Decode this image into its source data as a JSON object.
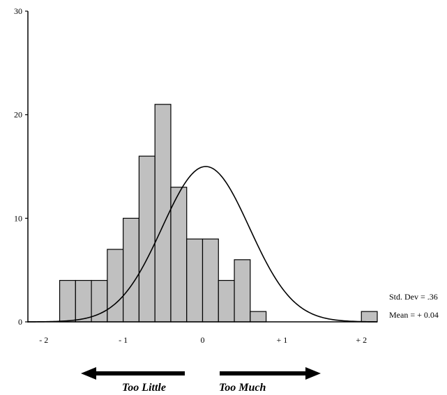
{
  "chart_data": {
    "type": "bar",
    "title": "",
    "xlabel": "",
    "ylabel": "",
    "ylim": [
      0,
      30
    ],
    "xlim": [
      -2.2,
      2.2
    ],
    "grid": false,
    "y_ticks": [
      "0",
      "10",
      "20",
      "30"
    ],
    "y_tick_values": [
      0,
      10,
      20,
      30
    ],
    "x_ticks": [
      "- 2",
      "- 1",
      "0",
      "+ 1",
      "+ 2"
    ],
    "x_tick_values": [
      -2,
      -1,
      0,
      1,
      2
    ],
    "bins": [
      {
        "start": -1.8,
        "end": -1.6,
        "value": 4
      },
      {
        "start": -1.6,
        "end": -1.4,
        "value": 4
      },
      {
        "start": -1.4,
        "end": -1.2,
        "value": 4
      },
      {
        "start": -1.2,
        "end": -1.0,
        "value": 7
      },
      {
        "start": -1.0,
        "end": -0.8,
        "value": 10
      },
      {
        "start": -0.8,
        "end": -0.6,
        "value": 16
      },
      {
        "start": -0.6,
        "end": -0.4,
        "value": 21
      },
      {
        "start": -0.4,
        "end": -0.2,
        "value": 13
      },
      {
        "start": -0.2,
        "end": 0.0,
        "value": 8
      },
      {
        "start": 0.0,
        "end": 0.2,
        "value": 8
      },
      {
        "start": 0.2,
        "end": 0.4,
        "value": 4
      },
      {
        "start": 0.4,
        "end": 0.6,
        "value": 6
      },
      {
        "start": 0.6,
        "end": 0.8,
        "value": 1
      },
      {
        "start": 0.8,
        "end": 1.0,
        "value": 0
      },
      {
        "start": 1.0,
        "end": 1.2,
        "value": 0
      },
      {
        "start": 1.2,
        "end": 1.4,
        "value": 0
      },
      {
        "start": 1.4,
        "end": 1.6,
        "value": 0
      },
      {
        "start": 1.6,
        "end": 1.8,
        "value": 0
      },
      {
        "start": 1.8,
        "end": 2.0,
        "value": 0
      },
      {
        "start": 2.0,
        "end": 2.2,
        "value": 1
      }
    ],
    "normal_curve": {
      "mean": 0.04,
      "peak": 15,
      "sd_visual": 0.55
    },
    "stats": {
      "std_dev_label": "Std. Dev = .36",
      "mean_label": "Mean = + 0.04"
    },
    "annotations": {
      "left_arrow_label": "Too Little",
      "right_arrow_label": "Too Much"
    },
    "colors": {
      "bar_fill": "#c0c0c0",
      "bar_stroke": "#000000",
      "axis": "#000000",
      "curve": "#000000"
    }
  }
}
